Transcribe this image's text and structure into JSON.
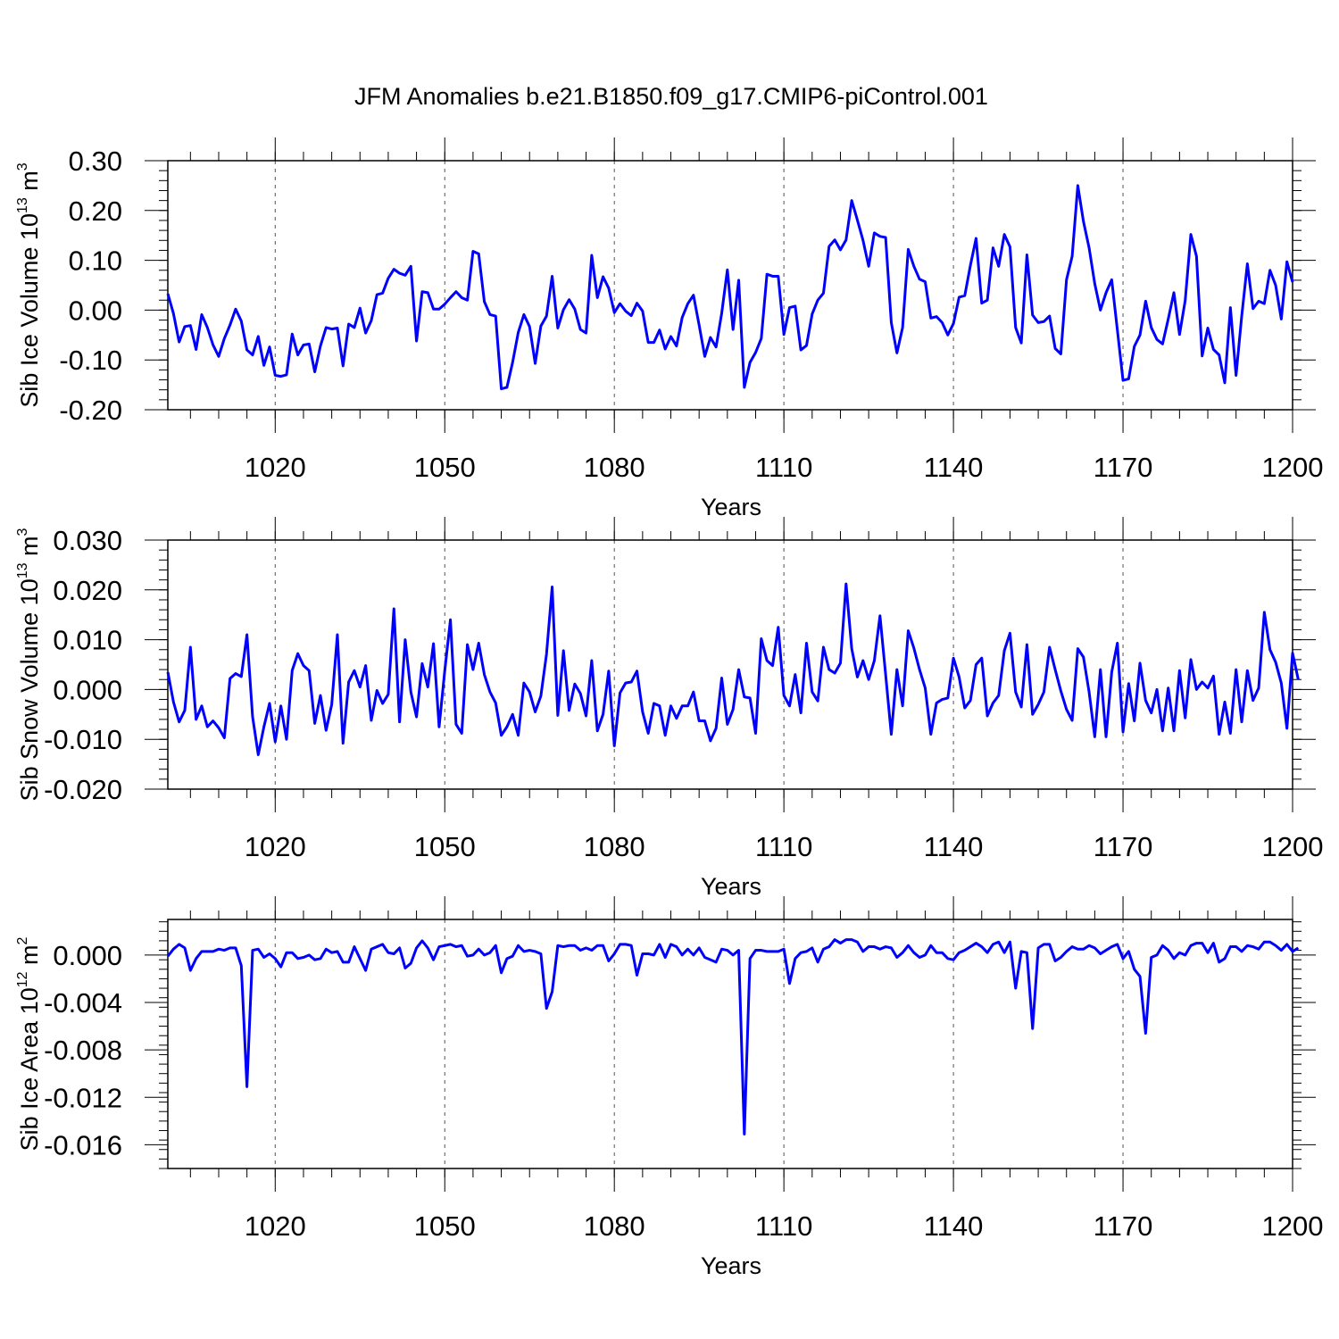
{
  "title": "JFM Anomalies b.e21.B1850.f09_g17.CMIP6-piControl.001",
  "colors": {
    "series": "#0000ff",
    "axis": "#000000",
    "grid": "#555555"
  },
  "chart_data": [
    {
      "type": "line",
      "ylabel": "Sib Ice Volume 10",
      "ylabel_exp": "13",
      "ylabel_unit": "m",
      "ylabel_unit_exp": "3",
      "xlabel": "Years",
      "xlim": [
        1001,
        1200
      ],
      "ylim": [
        -0.2,
        0.3
      ],
      "yticks": [
        -0.2,
        -0.1,
        0.0,
        0.1,
        0.2,
        0.3
      ],
      "ytick_labels": [
        "-0.20",
        "-0.10",
        "0.00",
        "0.10",
        "0.20",
        "0.30"
      ],
      "xticks": [
        1020,
        1050,
        1080,
        1110,
        1140,
        1170,
        1200
      ],
      "xtick_labels": [
        "1020",
        "1050",
        "1080",
        "1110",
        "1140",
        "1170",
        "1200"
      ],
      "grid": "vertical dashed",
      "x_start": 1001,
      "series": [
        {
          "color": "#0000ff",
          "values": [
            0.033,
            -0.007,
            -0.064,
            -0.033,
            -0.031,
            -0.079,
            -0.009,
            -0.035,
            -0.07,
            -0.093,
            -0.057,
            -0.03,
            0.002,
            -0.022,
            -0.08,
            -0.09,
            -0.053,
            -0.111,
            -0.074,
            -0.131,
            -0.133,
            -0.13,
            -0.048,
            -0.09,
            -0.07,
            -0.068,
            -0.124,
            -0.072,
            -0.035,
            -0.038,
            -0.036,
            -0.112,
            -0.028,
            -0.035,
            0.004,
            -0.046,
            -0.021,
            0.031,
            0.034,
            0.064,
            0.082,
            0.074,
            0.07,
            0.088,
            -0.062,
            0.037,
            0.035,
            0.002,
            0.002,
            0.012,
            0.025,
            0.037,
            0.025,
            0.02,
            0.118,
            0.113,
            0.017,
            -0.009,
            -0.012,
            -0.158,
            -0.155,
            -0.105,
            -0.045,
            -0.009,
            -0.033,
            -0.107,
            -0.032,
            -0.012,
            0.068,
            -0.036,
            0.001,
            0.021,
            0.002,
            -0.039,
            -0.046,
            0.11,
            0.025,
            0.067,
            0.044,
            -0.005,
            0.013,
            -0.002,
            -0.011,
            0.014,
            -0.002,
            -0.065,
            -0.065,
            -0.04,
            -0.078,
            -0.053,
            -0.072,
            -0.015,
            0.013,
            0.03,
            -0.03,
            -0.093,
            -0.055,
            -0.074,
            -0.006,
            0.081,
            -0.039,
            0.06,
            -0.155,
            -0.105,
            -0.085,
            -0.057,
            0.072,
            0.068,
            0.068,
            -0.049,
            0.005,
            0.008,
            -0.08,
            -0.071,
            -0.008,
            0.02,
            0.034,
            0.128,
            0.141,
            0.121,
            0.141,
            0.22,
            0.181,
            0.14,
            0.088,
            0.155,
            0.148,
            0.146,
            -0.025,
            -0.086,
            -0.035,
            0.122,
            0.088,
            0.062,
            0.057,
            -0.016,
            -0.013,
            -0.025,
            -0.05,
            -0.027,
            0.026,
            0.029,
            0.09,
            0.144,
            0.014,
            0.02,
            0.125,
            0.088,
            0.152,
            0.127,
            -0.035,
            -0.066,
            0.111,
            -0.01,
            -0.025,
            -0.023,
            -0.012,
            -0.077,
            -0.088,
            0.061,
            0.108,
            0.25,
            0.178,
            0.125,
            0.053,
            0.0,
            0.035,
            0.061,
            -0.04,
            -0.141,
            -0.138,
            -0.073,
            -0.05,
            0.018,
            -0.035,
            -0.059,
            -0.068,
            -0.018,
            0.035,
            -0.049,
            0.019,
            0.152,
            0.108,
            -0.092,
            -0.036,
            -0.079,
            -0.09,
            -0.146,
            0.005,
            -0.131,
            -0.012,
            0.093,
            0.003,
            0.018,
            0.013,
            0.08,
            0.05,
            -0.018,
            0.097,
            0.056
          ]
        }
      ]
    },
    {
      "type": "line",
      "ylabel": "Sib Snow Volume 10",
      "ylabel_exp": "13",
      "ylabel_unit": "m",
      "ylabel_unit_exp": "3",
      "xlabel": "Years",
      "xlim": [
        1001,
        1200
      ],
      "ylim": [
        -0.02,
        0.03
      ],
      "yticks": [
        -0.02,
        -0.01,
        0.0,
        0.01,
        0.02,
        0.03
      ],
      "ytick_labels": [
        "-0.020",
        "-0.010",
        "0.000",
        "0.010",
        "0.020",
        "0.030"
      ],
      "xticks": [
        1020,
        1050,
        1080,
        1110,
        1140,
        1170,
        1200
      ],
      "xtick_labels": [
        "1020",
        "1050",
        "1080",
        "1110",
        "1140",
        "1170",
        "1200"
      ],
      "grid": "vertical dashed",
      "x_start": 1001,
      "series": [
        {
          "color": "#0000ff",
          "values": [
            0.0035,
            -0.0025,
            -0.0065,
            -0.0042,
            0.0085,
            -0.006,
            -0.0033,
            -0.0075,
            -0.0063,
            -0.0077,
            -0.0097,
            0.0022,
            0.0032,
            0.0026,
            0.011,
            -0.0055,
            -0.0131,
            -0.0075,
            -0.0028,
            -0.0105,
            -0.0033,
            -0.01,
            0.0038,
            0.0072,
            0.0048,
            0.0038,
            -0.0068,
            -0.0012,
            -0.0082,
            -0.003,
            0.011,
            -0.0108,
            0.0015,
            0.0038,
            0.0005,
            0.0048,
            -0.0062,
            -0.0002,
            -0.0028,
            -0.001,
            0.0162,
            -0.0065,
            0.01,
            -0.0005,
            -0.0055,
            0.0052,
            0.0005,
            0.0092,
            -0.0075,
            0.0038,
            0.014,
            -0.007,
            -0.0088,
            0.009,
            0.004,
            0.0093,
            0.003,
            -0.0005,
            -0.0027,
            -0.0092,
            -0.0075,
            -0.005,
            -0.0092,
            0.0013,
            -0.0005,
            -0.0045,
            -0.0013,
            0.0071,
            0.0206,
            -0.0052,
            0.0078,
            -0.0042,
            0.0011,
            -0.0008,
            -0.0053,
            0.0058,
            -0.0083,
            -0.005,
            0.0037,
            -0.0113,
            -0.0007,
            0.0013,
            0.0015,
            0.0037,
            -0.0045,
            -0.0088,
            -0.0028,
            -0.0033,
            -0.0092,
            -0.0033,
            -0.0058,
            -0.0033,
            -0.0033,
            -0.0005,
            -0.0063,
            -0.0063,
            -0.0103,
            -0.0078,
            0.0023,
            -0.007,
            -0.004,
            0.004,
            -0.0015,
            -0.0017,
            -0.0088,
            0.0102,
            0.0058,
            0.0048,
            0.0125,
            -0.0012,
            -0.0033,
            0.003,
            -0.0047,
            0.0093,
            -0.0005,
            -0.0023,
            0.0085,
            0.004,
            0.0033,
            0.0053,
            0.0212,
            0.0082,
            0.0025,
            0.0058,
            0.002,
            0.0058,
            0.0148,
            0.003,
            -0.009,
            0.004,
            -0.0033,
            0.0118,
            0.0083,
            0.004,
            0.0003,
            -0.009,
            -0.0027,
            -0.002,
            -0.0017,
            0.0063,
            0.0025,
            -0.0037,
            -0.0022,
            0.005,
            0.0063,
            -0.0053,
            -0.0027,
            -0.0012,
            0.0078,
            0.0113,
            -0.0005,
            -0.0035,
            0.009,
            -0.005,
            -0.003,
            -0.0005,
            0.0085,
            0.004,
            -0.0003,
            -0.004,
            -0.0062,
            0.0082,
            0.0065,
            -0.0005,
            -0.0095,
            0.004,
            -0.0095,
            0.0035,
            0.0093,
            -0.0085,
            0.0012,
            -0.0063,
            0.0053,
            -0.0022,
            -0.0047,
            0.0,
            -0.0083,
            0.0003,
            -0.0083,
            0.0038,
            -0.0057,
            0.006,
            0.0,
            0.0015,
            0.0003,
            0.0027,
            -0.009,
            -0.0025,
            -0.0088,
            0.004,
            -0.0065,
            0.0038,
            -0.0022,
            0.0003,
            0.0155,
            0.008,
            0.0055,
            0.0013,
            -0.0078,
            0.0073,
            0.002
          ]
        }
      ]
    },
    {
      "type": "line",
      "ylabel": "Sib Ice Area 10",
      "ylabel_exp": "12",
      "ylabel_unit": "m",
      "ylabel_unit_exp": "2",
      "xlabel": "Years",
      "xlim": [
        1001,
        1200
      ],
      "ylim": [
        -0.018,
        0.003
      ],
      "yticks": [
        -0.016,
        -0.012,
        -0.008,
        -0.004,
        0.0
      ],
      "ytick_labels": [
        "-0.016",
        "-0.012",
        "-0.008",
        "-0.004",
        "0.000"
      ],
      "xticks": [
        1020,
        1050,
        1080,
        1110,
        1140,
        1170,
        1200
      ],
      "xtick_labels": [
        "1020",
        "1050",
        "1080",
        "1110",
        "1140",
        "1170",
        "1200"
      ],
      "grid": "vertical dashed",
      "x_start": 1001,
      "series": [
        {
          "color": "#0000ff",
          "values": [
            -0.0001,
            0.0005,
            0.0009,
            0.0006,
            -0.0013,
            -0.0003,
            0.0003,
            0.0003,
            0.0003,
            0.0005,
            0.0004,
            0.0006,
            0.0006,
            -0.0009,
            -0.0111,
            0.0004,
            0.0005,
            -0.0002,
            0.0001,
            -0.0003,
            -0.001,
            0.0002,
            0.0002,
            -0.0003,
            -0.0002,
            0.0,
            -0.0004,
            -0.0003,
            0.0005,
            0.0002,
            0.0003,
            -0.0006,
            -0.0006,
            0.0007,
            -0.0003,
            -0.0013,
            0.0005,
            0.0007,
            0.0009,
            0.0002,
            0.0001,
            0.0006,
            -0.0011,
            -0.0007,
            0.0006,
            0.0012,
            0.0006,
            -0.0004,
            0.0007,
            0.0008,
            0.0009,
            0.0007,
            0.0008,
            -0.0001,
            0.0,
            0.0005,
            0.0,
            0.0002,
            0.0008,
            -0.0015,
            -0.0003,
            -0.0001,
            0.0008,
            0.0003,
            0.0004,
            0.0003,
            0.0001,
            -0.0045,
            -0.0031,
            0.0008,
            0.0007,
            0.0008,
            0.0008,
            0.0004,
            0.0006,
            0.0004,
            0.0008,
            0.0008,
            -0.0005,
            0.0001,
            0.0009,
            0.0009,
            0.0008,
            -0.0017,
            0.0001,
            0.0001,
            0.0,
            0.0009,
            -0.0002,
            0.0009,
            0.0007,
            0.0,
            0.0005,
            0.0,
            0.0006,
            -0.0002,
            -0.0004,
            -0.0006,
            0.0005,
            0.0004,
            0.0,
            0.0004,
            -0.0151,
            -0.0003,
            0.0004,
            0.0004,
            0.0003,
            0.0003,
            0.0003,
            0.0005,
            -0.0024,
            -0.0003,
            0.0002,
            0.0003,
            0.0006,
            -0.0006,
            0.0005,
            0.0007,
            0.0013,
            0.001,
            0.0013,
            0.0013,
            0.0011,
            0.0003,
            0.0007,
            0.0007,
            0.0005,
            0.0007,
            0.0006,
            -0.0002,
            0.0002,
            0.0008,
            0.0002,
            -0.0002,
            0.0,
            0.0008,
            0.0002,
            0.0002,
            -0.0003,
            -0.0004,
            0.0002,
            0.0004,
            0.0007,
            0.001,
            0.0007,
            0.0002,
            0.0009,
            0.0011,
            0.0002,
            0.0011,
            -0.0028,
            0.0003,
            0.0002,
            -0.0062,
            0.0006,
            0.0009,
            0.0009,
            -0.0005,
            -0.0002,
            0.0003,
            0.0007,
            0.0005,
            0.0005,
            0.0008,
            0.0006,
            0.0001,
            0.0004,
            0.0007,
            0.0009,
            -0.0003,
            0.0003,
            -0.0012,
            -0.0018,
            -0.0066,
            -0.0002,
            0.0,
            0.0008,
            0.0004,
            -0.0003,
            0.0002,
            0.0,
            0.0008,
            0.001,
            0.001,
            0.0002,
            0.001,
            -0.0006,
            -0.0003,
            0.0007,
            0.0007,
            0.0003,
            0.0008,
            0.0007,
            0.0005,
            0.0011,
            0.0011,
            0.0008,
            0.0004,
            0.0009,
            0.0003,
            0.0006
          ]
        }
      ]
    }
  ]
}
